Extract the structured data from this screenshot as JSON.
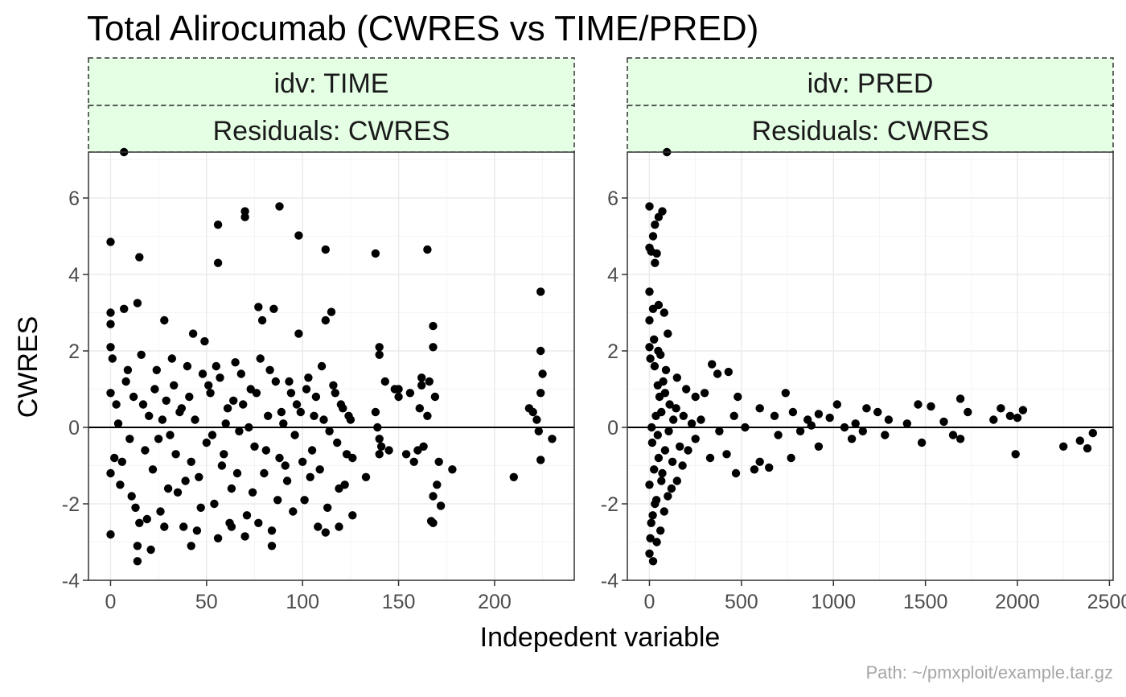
{
  "title": "Total Alirocumab (CWRES vs TIME/PRED)",
  "caption": "Path: ~/pmxploit/example.tar.gz",
  "xlabel": "Indepedent variable",
  "ylabel": "CWRES",
  "colors": {
    "strip_fill": "#e5ffe5",
    "strip_border": "#333333",
    "points": "#000000",
    "grid_major": "#ebebeb",
    "grid_minor": "#f5f5f5",
    "panel_border": "#333333",
    "hline": "#000000"
  },
  "chart_data": [
    {
      "type": "scatter",
      "strip_top": "idv: TIME",
      "strip_bottom": "Residuals: CWRES",
      "xlim": [
        -11.5,
        241.5
      ],
      "ylim": [
        -4,
        7.2
      ],
      "x_ticks": [
        0,
        50,
        100,
        150,
        200
      ],
      "x_tick_labels": [
        "0",
        "50",
        "100",
        "150",
        "200"
      ],
      "y_ticks": [
        -4,
        -2,
        0,
        2,
        4,
        6
      ],
      "y_tick_labels": [
        "-4",
        "-2",
        "0",
        "2",
        "4",
        "6"
      ],
      "hline": 0,
      "points": [
        [
          7,
          7.2
        ],
        [
          0,
          4.85
        ],
        [
          15,
          4.45
        ],
        [
          14,
          3.25
        ],
        [
          0,
          3.0
        ],
        [
          0,
          2.7
        ],
        [
          7,
          3.1
        ],
        [
          28,
          2.8
        ],
        [
          43,
          2.45
        ],
        [
          49,
          2.25
        ],
        [
          56,
          5.3
        ],
        [
          56,
          4.3
        ],
        [
          70,
          5.65
        ],
        [
          70,
          5.5
        ],
        [
          88,
          5.78
        ],
        [
          98,
          5.02
        ],
        [
          112,
          4.65
        ],
        [
          138,
          4.55
        ],
        [
          165,
          4.65
        ],
        [
          224,
          3.55
        ],
        [
          77,
          3.15
        ],
        [
          79,
          2.8
        ],
        [
          85,
          3.1
        ],
        [
          98,
          2.45
        ],
        [
          112,
          2.8
        ],
        [
          115,
          3.02
        ],
        [
          168,
          2.65
        ],
        [
          168,
          2.1
        ],
        [
          224,
          2.0
        ],
        [
          225,
          1.4
        ],
        [
          140,
          2.1
        ],
        [
          140,
          1.9
        ],
        [
          162,
          1.3
        ],
        [
          162,
          1.1
        ],
        [
          150,
          1.0
        ],
        [
          143,
          1.2
        ],
        [
          224,
          0.9
        ],
        [
          218,
          0.5
        ],
        [
          222,
          0.2
        ],
        [
          230,
          -0.3
        ],
        [
          1,
          1.8
        ],
        [
          2,
          -0.8
        ],
        [
          3,
          0.6
        ],
        [
          5,
          -1.5
        ],
        [
          8,
          1.2
        ],
        [
          10,
          -0.3
        ],
        [
          12,
          0.8
        ],
        [
          13,
          -2.1
        ],
        [
          16,
          1.9
        ],
        [
          18,
          -0.6
        ],
        [
          20,
          0.3
        ],
        [
          22,
          -1.1
        ],
        [
          24,
          1.5
        ],
        [
          26,
          -2.2
        ],
        [
          29,
          0.7
        ],
        [
          31,
          -0.2
        ],
        [
          33,
          1.1
        ],
        [
          35,
          -1.7
        ],
        [
          36,
          0.4
        ],
        [
          38,
          -2.6
        ],
        [
          40,
          1.6
        ],
        [
          42,
          -0.9
        ],
        [
          44,
          0.2
        ],
        [
          46,
          -1.3
        ],
        [
          48,
          1.4
        ],
        [
          50,
          -0.4
        ],
        [
          52,
          0.9
        ],
        [
          54,
          -2.0
        ],
        [
          57,
          1.3
        ],
        [
          59,
          -0.7
        ],
        [
          61,
          0.5
        ],
        [
          63,
          -1.6
        ],
        [
          65,
          1.7
        ],
        [
          67,
          -0.1
        ],
        [
          69,
          0.6
        ],
        [
          71,
          -2.3
        ],
        [
          73,
          1.0
        ],
        [
          75,
          -0.5
        ],
        [
          78,
          1.8
        ],
        [
          80,
          -1.2
        ],
        [
          82,
          0.3
        ],
        [
          84,
          -2.7
        ],
        [
          86,
          1.2
        ],
        [
          88,
          -0.8
        ],
        [
          90,
          0.1
        ],
        [
          92,
          -1.4
        ],
        [
          94,
          0.9
        ],
        [
          96,
          -0.2
        ],
        [
          99,
          0.4
        ],
        [
          101,
          -1.9
        ],
        [
          103,
          1.3
        ],
        [
          105,
          -0.6
        ],
        [
          107,
          0.8
        ],
        [
          109,
          -1.1
        ],
        [
          111,
          0.2
        ],
        [
          113,
          -2.1
        ],
        [
          116,
          1.1
        ],
        [
          118,
          -0.4
        ],
        [
          120,
          0.6
        ],
        [
          122,
          -1.5
        ],
        [
          124,
          0.3
        ],
        [
          126,
          -0.8
        ],
        [
          0,
          -2.8
        ],
        [
          0,
          -1.2
        ],
        [
          0,
          0.9
        ],
        [
          0,
          2.1
        ],
        [
          14,
          -3.5
        ],
        [
          14,
          -3.1
        ],
        [
          15,
          -2.5
        ],
        [
          21,
          -3.2
        ],
        [
          28,
          -2.6
        ],
        [
          42,
          -3.1
        ],
        [
          45,
          -2.7
        ],
        [
          56,
          -2.9
        ],
        [
          63,
          -2.6
        ],
        [
          70,
          -2.85
        ],
        [
          77,
          -2.5
        ],
        [
          84,
          -3.1
        ],
        [
          112,
          -2.75
        ],
        [
          119,
          -2.6
        ],
        [
          126,
          -2.3
        ],
        [
          133,
          -1.3
        ],
        [
          140,
          -0.7
        ],
        [
          140,
          -0.3
        ],
        [
          145,
          -0.6
        ],
        [
          150,
          0.8
        ],
        [
          154,
          -0.7
        ],
        [
          158,
          -0.9
        ],
        [
          160,
          -0.6
        ],
        [
          161,
          0.5
        ],
        [
          163,
          -0.5
        ],
        [
          165,
          0.3
        ],
        [
          166,
          1.2
        ],
        [
          167,
          -2.45
        ],
        [
          168,
          -2.5
        ],
        [
          168,
          -1.8
        ],
        [
          169,
          0.8
        ],
        [
          170,
          -1.5
        ],
        [
          171,
          -0.9
        ],
        [
          172,
          -2.05
        ],
        [
          178,
          -1.1
        ],
        [
          210,
          -1.3
        ],
        [
          224,
          -0.85
        ],
        [
          223,
          -0.1
        ],
        [
          220,
          0.4
        ],
        [
          138,
          0.4
        ],
        [
          139,
          0.0
        ],
        [
          141,
          -0.5
        ],
        [
          148,
          1.0
        ],
        [
          156,
          0.9
        ],
        [
          4,
          0.1
        ],
        [
          6,
          -0.9
        ],
        [
          9,
          1.5
        ],
        [
          11,
          -1.8
        ],
        [
          17,
          0.6
        ],
        [
          19,
          -2.4
        ],
        [
          23,
          1.0
        ],
        [
          25,
          -0.3
        ],
        [
          27,
          0.2
        ],
        [
          30,
          -1.6
        ],
        [
          32,
          1.8
        ],
        [
          34,
          -0.7
        ],
        [
          37,
          0.5
        ],
        [
          39,
          -1.4
        ],
        [
          41,
          0.8
        ],
        [
          47,
          -2.1
        ],
        [
          51,
          1.1
        ],
        [
          53,
          -0.2
        ],
        [
          55,
          1.6
        ],
        [
          58,
          -1.0
        ],
        [
          60,
          0.1
        ],
        [
          62,
          -2.5
        ],
        [
          64,
          0.7
        ],
        [
          66,
          -1.2
        ],
        [
          68,
          1.4
        ],
        [
          72,
          0.0
        ],
        [
          74,
          -1.7
        ],
        [
          76,
          0.9
        ],
        [
          81,
          -0.6
        ],
        [
          83,
          1.5
        ],
        [
          87,
          -1.9
        ],
        [
          89,
          0.4
        ],
        [
          91,
          -1.0
        ],
        [
          93,
          1.2
        ],
        [
          95,
          -2.2
        ],
        [
          97,
          0.6
        ],
        [
          100,
          -0.9
        ],
        [
          102,
          1.0
        ],
        [
          104,
          -1.3
        ],
        [
          106,
          0.3
        ],
        [
          108,
          -2.6
        ],
        [
          110,
          1.6
        ],
        [
          114,
          -0.1
        ],
        [
          117,
          0.9
        ],
        [
          119,
          -1.6
        ],
        [
          121,
          0.5
        ],
        [
          123,
          -0.7
        ],
        [
          125,
          0.2
        ]
      ]
    },
    {
      "type": "scatter",
      "strip_top": "idv: PRED",
      "strip_bottom": "Residuals: CWRES",
      "xlim": [
        -120,
        2520
      ],
      "ylim": [
        -4,
        7.2
      ],
      "x_ticks": [
        0,
        500,
        1000,
        1500,
        2000,
        2500
      ],
      "x_tick_labels": [
        "0",
        "500",
        "1000",
        "1500",
        "2000",
        "2500"
      ],
      "y_ticks": [
        -4,
        -2,
        0,
        2,
        4,
        6
      ],
      "y_tick_labels": [
        "-4",
        "-2",
        "0",
        "2",
        "4",
        "6"
      ],
      "hline": 0,
      "points": [
        [
          95,
          7.2
        ],
        [
          0,
          5.78
        ],
        [
          70,
          5.65
        ],
        [
          50,
          5.5
        ],
        [
          30,
          5.3
        ],
        [
          20,
          5.0
        ],
        [
          0,
          4.7
        ],
        [
          10,
          4.6
        ],
        [
          40,
          4.55
        ],
        [
          30,
          4.3
        ],
        [
          0,
          3.55
        ],
        [
          50,
          3.2
        ],
        [
          20,
          3.1
        ],
        [
          80,
          3.0
        ],
        [
          0,
          2.8
        ],
        [
          100,
          2.45
        ],
        [
          0,
          2.1
        ],
        [
          60,
          1.9
        ],
        [
          150,
          1.3
        ],
        [
          200,
          1.0
        ],
        [
          340,
          1.65
        ],
        [
          370,
          1.4
        ],
        [
          430,
          1.45
        ],
        [
          300,
          0.9
        ],
        [
          250,
          0.8
        ],
        [
          480,
          0.8
        ],
        [
          600,
          0.5
        ],
        [
          680,
          0.3
        ],
        [
          740,
          0.9
        ],
        [
          780,
          0.4
        ],
        [
          860,
          0.2
        ],
        [
          920,
          0.35
        ],
        [
          980,
          0.25
        ],
        [
          1020,
          0.6
        ],
        [
          1060,
          0.0
        ],
        [
          1120,
          0.1
        ],
        [
          1180,
          0.5
        ],
        [
          1240,
          0.4
        ],
        [
          1300,
          0.2
        ],
        [
          1400,
          0.1
        ],
        [
          1460,
          0.6
        ],
        [
          1530,
          0.55
        ],
        [
          1600,
          0.15
        ],
        [
          1650,
          -0.2
        ],
        [
          1690,
          0.75
        ],
        [
          1730,
          0.4
        ],
        [
          1870,
          0.2
        ],
        [
          1910,
          0.5
        ],
        [
          1960,
          0.3
        ],
        [
          2000,
          0.25
        ],
        [
          2030,
          0.45
        ],
        [
          1990,
          -0.7
        ],
        [
          2250,
          -0.5
        ],
        [
          2340,
          -0.35
        ],
        [
          2380,
          -0.55
        ],
        [
          2410,
          -0.15
        ],
        [
          1480,
          -0.4
        ],
        [
          1690,
          -0.3
        ],
        [
          1280,
          -0.2
        ],
        [
          1100,
          -0.3
        ],
        [
          920,
          -0.5
        ],
        [
          770,
          -0.8
        ],
        [
          650,
          -1.05
        ],
        [
          570,
          -1.1
        ],
        [
          470,
          -1.2
        ],
        [
          420,
          -0.7
        ],
        [
          330,
          -0.8
        ],
        [
          180,
          -1.0
        ],
        [
          150,
          -1.4
        ],
        [
          120,
          -1.6
        ],
        [
          600,
          -0.9
        ],
        [
          700,
          -0.2
        ],
        [
          820,
          -0.1
        ],
        [
          250,
          -0.3
        ],
        [
          380,
          -0.1
        ],
        [
          280,
          0.2
        ],
        [
          520,
          0.0
        ],
        [
          460,
          0.3
        ],
        [
          880,
          0.05
        ],
        [
          1160,
          -0.1
        ],
        [
          0,
          -3.3
        ],
        [
          20,
          -3.5
        ],
        [
          40,
          -3.0
        ],
        [
          60,
          -2.7
        ],
        [
          10,
          -2.5
        ],
        [
          80,
          -2.2
        ],
        [
          100,
          -1.8
        ],
        [
          30,
          -2.0
        ],
        [
          70,
          -1.2
        ],
        [
          50,
          -0.8
        ],
        [
          0,
          -1.5
        ],
        [
          15,
          -0.4
        ],
        [
          35,
          0.3
        ],
        [
          55,
          0.8
        ],
        [
          75,
          1.2
        ],
        [
          90,
          1.5
        ],
        [
          110,
          0.6
        ],
        [
          130,
          0.2
        ],
        [
          5,
          1.8
        ],
        [
          25,
          2.3
        ],
        [
          45,
          -0.2
        ],
        [
          65,
          0.4
        ],
        [
          85,
          -0.6
        ],
        [
          105,
          -0.1
        ],
        [
          125,
          -0.9
        ],
        [
          145,
          0.5
        ],
        [
          165,
          -0.5
        ],
        [
          185,
          0.3
        ],
        [
          210,
          -0.6
        ],
        [
          230,
          0.1
        ],
        [
          5,
          -2.9
        ],
        [
          25,
          -1.1
        ],
        [
          45,
          1.1
        ],
        [
          65,
          -1.4
        ],
        [
          85,
          0.9
        ],
        [
          12,
          0.0
        ],
        [
          18,
          -2.3
        ],
        [
          28,
          1.6
        ],
        [
          38,
          -1.9
        ],
        [
          48,
          2.0
        ]
      ]
    }
  ]
}
